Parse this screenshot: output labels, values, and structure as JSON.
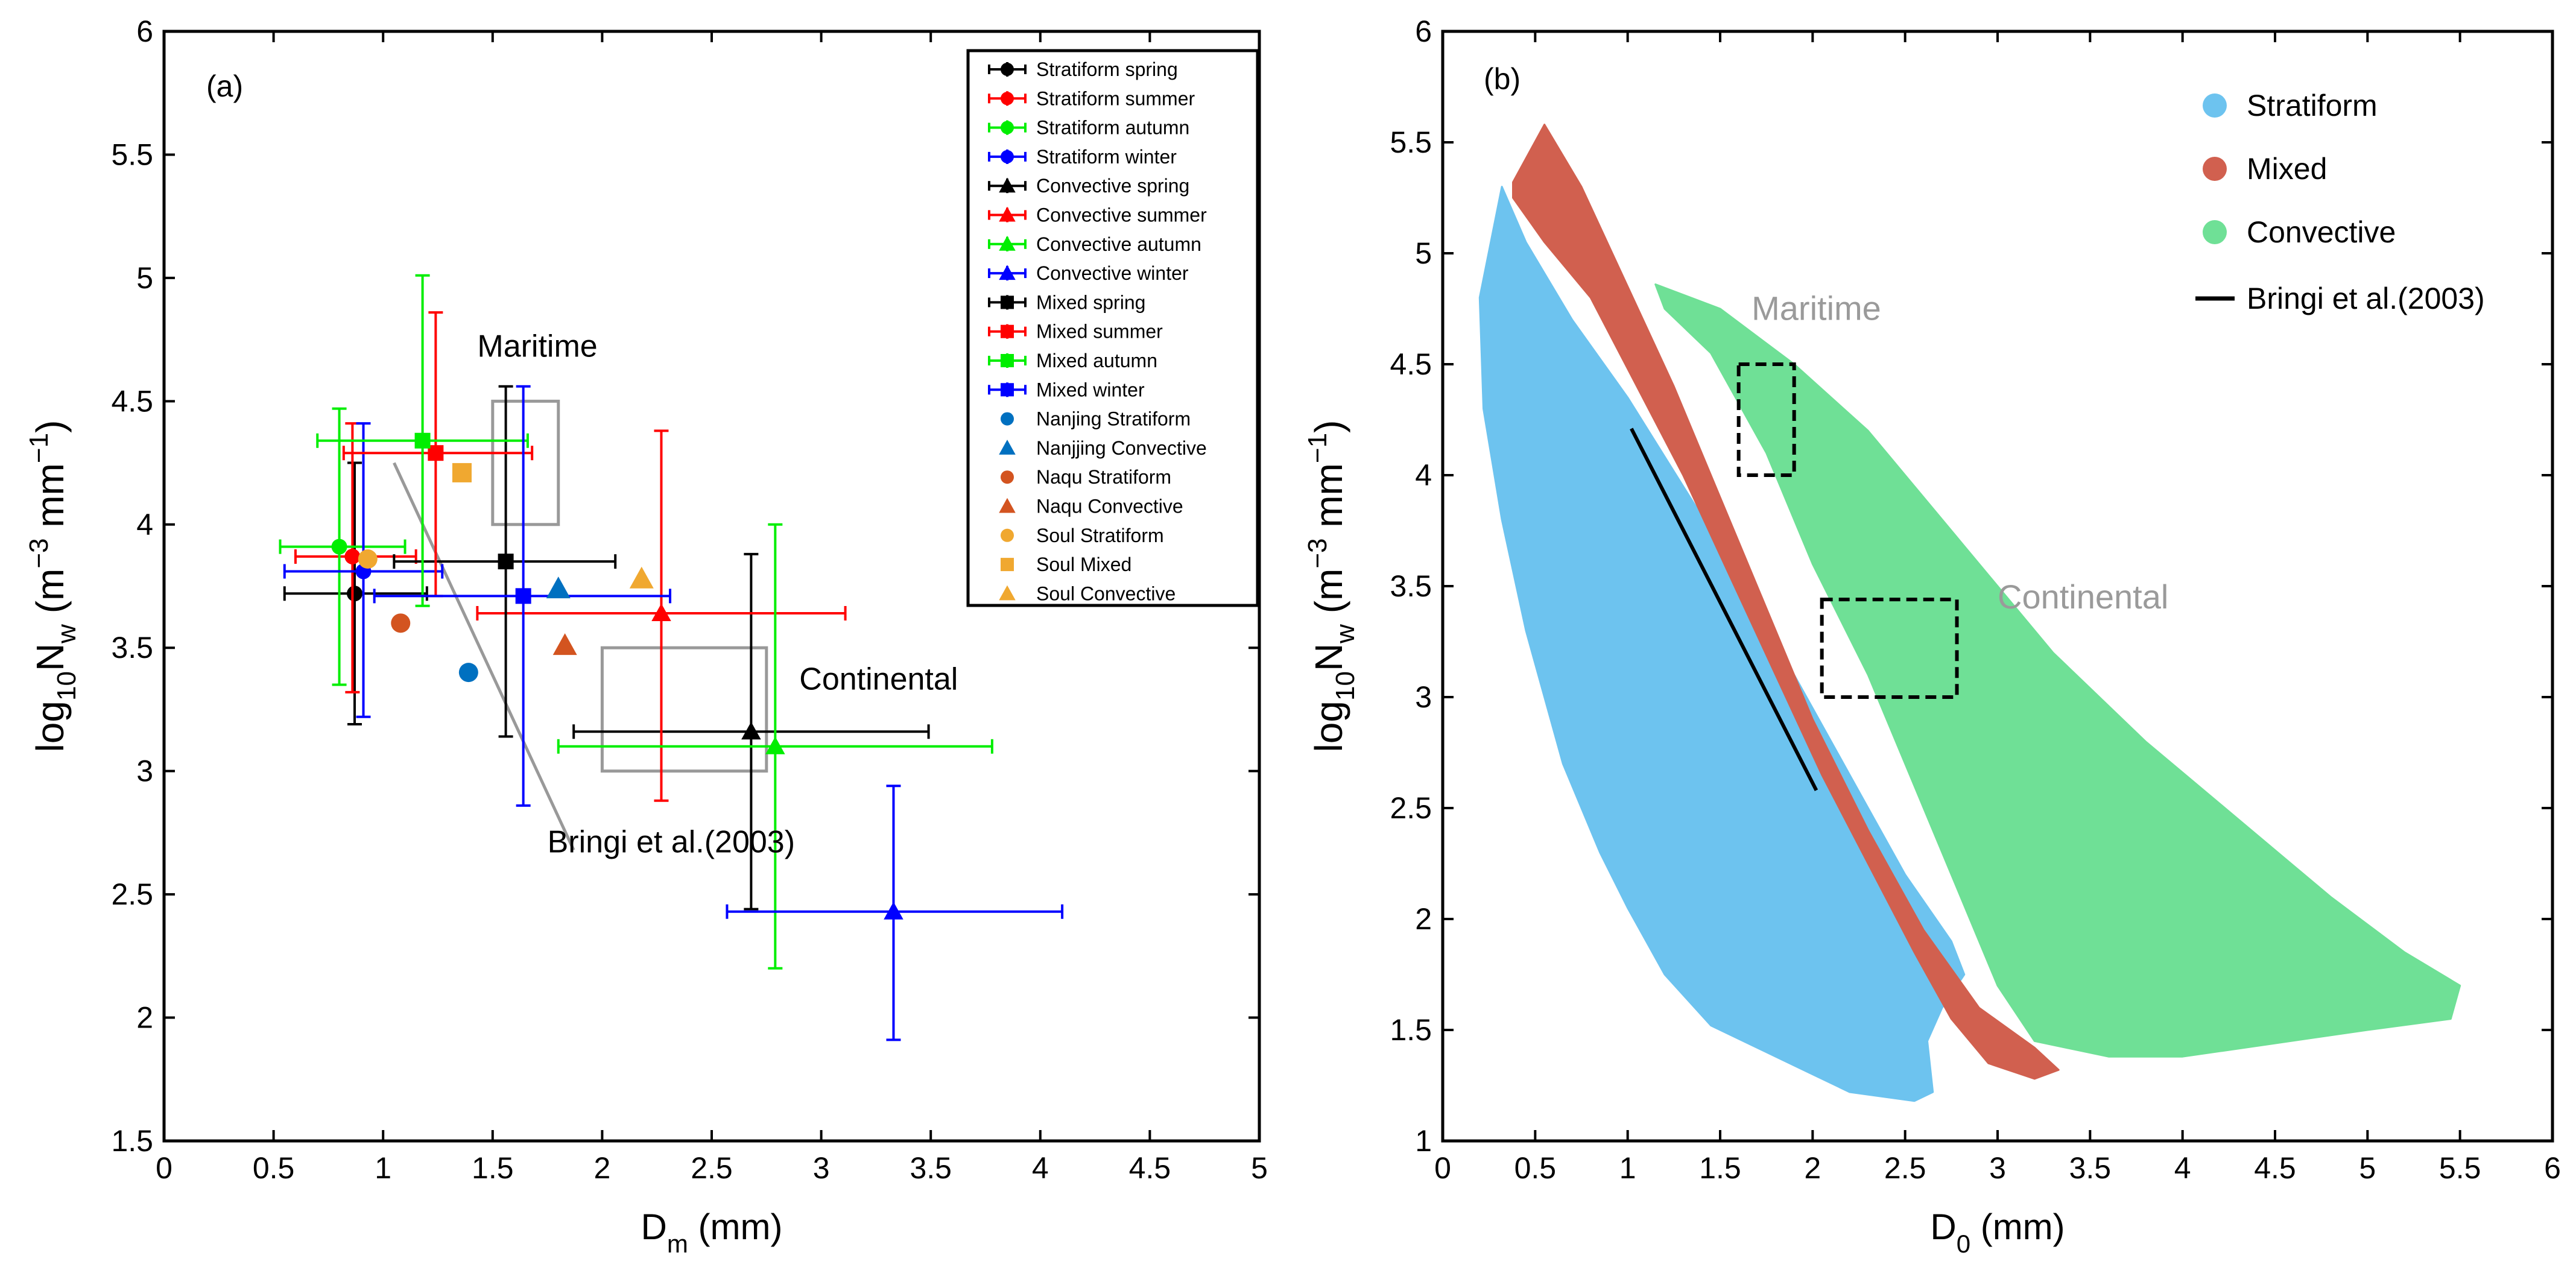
{
  "chart_data": [
    {
      "type": "scatter",
      "panel_label": "(a)",
      "xlabel": "D",
      "xlabel_sub": "m",
      "xlabel_unit": " (mm)",
      "ylabel_parts": [
        "log",
        "10",
        "N",
        "w",
        " (m",
        "−3",
        " mm",
        "−1",
        ")"
      ],
      "xlim": [
        0,
        5
      ],
      "ylim": [
        1.5,
        6
      ],
      "xticks": [
        0,
        0.5,
        1,
        1.5,
        2,
        2.5,
        3,
        3.5,
        4,
        4.5,
        5
      ],
      "xtick_labels": [
        "0",
        "0.5",
        "1",
        "1.5",
        "2",
        "2.5",
        "3",
        "3.5",
        "4",
        "4.5",
        "5"
      ],
      "yticks": [
        1.5,
        2,
        2.5,
        3,
        3.5,
        4,
        4.5,
        5,
        5.5,
        6
      ],
      "ytick_labels": [
        "1.5",
        "2",
        "2.5",
        "3",
        "3.5",
        "4",
        "4.5",
        "5",
        "5.5",
        "6"
      ],
      "grid": false,
      "legend_position": "top-right",
      "series": [
        {
          "name": "Stratiform spring",
          "color": "#000000",
          "marker": "circle",
          "x": 0.87,
          "y": 3.72,
          "xerr": [
            0.55,
            1.2
          ],
          "yerr": [
            3.19,
            4.25
          ]
        },
        {
          "name": "Stratiform summer",
          "color": "#ff0000",
          "marker": "circle",
          "x": 0.86,
          "y": 3.87,
          "xerr": [
            0.6,
            1.15
          ],
          "yerr": [
            3.32,
            4.41
          ]
        },
        {
          "name": "Stratiform autumn",
          "color": "#00ee00",
          "marker": "circle",
          "x": 0.8,
          "y": 3.91,
          "xerr": [
            0.53,
            1.1
          ],
          "yerr": [
            3.35,
            4.47
          ]
        },
        {
          "name": "Stratiform winter",
          "color": "#0000ff",
          "marker": "circle",
          "x": 0.91,
          "y": 3.81,
          "xerr": [
            0.55,
            1.27
          ],
          "yerr": [
            3.22,
            4.41
          ]
        },
        {
          "name": "Convective spring",
          "color": "#000000",
          "marker": "triangle",
          "x": 2.68,
          "y": 3.16,
          "xerr": [
            1.87,
            3.49
          ],
          "yerr": [
            2.44,
            3.88
          ]
        },
        {
          "name": "Convective summer",
          "color": "#ff0000",
          "marker": "triangle",
          "x": 2.27,
          "y": 3.64,
          "xerr": [
            1.43,
            3.11
          ],
          "yerr": [
            2.88,
            4.38
          ]
        },
        {
          "name": "Convective autumn",
          "color": "#00ee00",
          "marker": "triangle",
          "x": 2.79,
          "y": 3.1,
          "xerr": [
            1.8,
            3.78
          ],
          "yerr": [
            2.2,
            4.0
          ]
        },
        {
          "name": "Convective winter",
          "color": "#0000ff",
          "marker": "triangle",
          "x": 3.33,
          "y": 2.43,
          "xerr": [
            2.57,
            4.1
          ],
          "yerr": [
            1.91,
            2.94
          ]
        },
        {
          "name": "Mixed spring",
          "color": "#000000",
          "marker": "square",
          "x": 1.56,
          "y": 3.85,
          "xerr": [
            1.05,
            2.06
          ],
          "yerr": [
            3.14,
            4.56
          ]
        },
        {
          "name": "Mixed summer",
          "color": "#ff0000",
          "marker": "square",
          "x": 1.24,
          "y": 4.29,
          "xerr": [
            0.82,
            1.68
          ],
          "yerr": [
            3.71,
            4.86
          ]
        },
        {
          "name": "Mixed autumn",
          "color": "#00ee00",
          "marker": "square",
          "x": 1.18,
          "y": 4.34,
          "xerr": [
            0.7,
            1.66
          ],
          "yerr": [
            3.67,
            5.01
          ]
        },
        {
          "name": "Mixed winter",
          "color": "#0000ff",
          "marker": "square",
          "x": 1.64,
          "y": 3.71,
          "xerr": [
            0.96,
            2.31
          ],
          "yerr": [
            2.86,
            4.56
          ]
        },
        {
          "name": "Nanjing Stratiform",
          "color": "#0070c0",
          "marker": "dot",
          "x": 1.39,
          "y": 3.4
        },
        {
          "name": "Nanjjing Convective",
          "color": "#0070c0",
          "marker": "tri",
          "x": 1.8,
          "y": 3.74
        },
        {
          "name": "Naqu Stratiform",
          "color": "#d35420",
          "marker": "dot",
          "x": 1.08,
          "y": 3.6
        },
        {
          "name": "Naqu Convective",
          "color": "#d35420",
          "marker": "tri",
          "x": 1.83,
          "y": 3.51
        },
        {
          "name": "Soul Stratiform",
          "color": "#f0a830",
          "marker": "dot",
          "x": 0.93,
          "y": 3.86
        },
        {
          "name": "Soul Mixed",
          "color": "#f0a830",
          "marker": "sq",
          "x": 1.36,
          "y": 4.21
        },
        {
          "name": "Soul Convective",
          "color": "#f0a830",
          "marker": "tri",
          "x": 2.18,
          "y": 3.78
        }
      ],
      "boxes": [
        {
          "name": "Maritime",
          "x": [
            1.5,
            1.8
          ],
          "y": [
            4.0,
            4.5
          ],
          "color": "#999999"
        },
        {
          "name": "Continental",
          "x": [
            2.0,
            2.75
          ],
          "y": [
            3.0,
            3.5
          ],
          "color": "#999999"
        }
      ],
      "line": {
        "name": "Bringi et al.(2003)",
        "x": [
          1.05,
          1.87
        ],
        "y": [
          4.25,
          2.68
        ],
        "color": "#999999"
      },
      "annotations": [
        {
          "text": "Maritime",
          "x": 1.43,
          "y": 4.68
        },
        {
          "text": "Continental",
          "x": 2.9,
          "y": 3.33
        },
        {
          "text": "Bringi et al.(2003)",
          "x": 1.75,
          "y": 2.67
        }
      ]
    },
    {
      "type": "area",
      "panel_label": "(b)",
      "xlabel": "D",
      "xlabel_sub": "0",
      "xlabel_unit": " (mm)",
      "ylabel_parts": [
        "log",
        "10",
        "N",
        "w",
        " (m",
        "−3",
        " mm",
        "−1",
        ")"
      ],
      "xlim": [
        0,
        6
      ],
      "ylim": [
        1,
        6
      ],
      "xticks": [
        0,
        0.5,
        1,
        1.5,
        2,
        2.5,
        3,
        3.5,
        4,
        4.5,
        5,
        5.5,
        6
      ],
      "xtick_labels": [
        "0",
        "0.5",
        "1",
        "1.5",
        "2",
        "2.5",
        "3",
        "3.5",
        "4",
        "4.5",
        "5",
        "5.5",
        "6"
      ],
      "yticks": [
        1,
        1.5,
        2,
        2.5,
        3,
        3.5,
        4,
        4.5,
        5,
        5.5,
        6
      ],
      "ytick_labels": [
        "1",
        "1.5",
        "2",
        "2.5",
        "3",
        "3.5",
        "4",
        "4.5",
        "5",
        "5.5",
        "6"
      ],
      "grid": false,
      "legend_position": "top-right",
      "regions": [
        {
          "name": "Convective",
          "color": "#6fe096",
          "outline": [
            [
              1.15,
              4.86
            ],
            [
              1.5,
              4.75
            ],
            [
              1.9,
              4.5
            ],
            [
              2.3,
              4.2
            ],
            [
              2.8,
              3.7
            ],
            [
              3.3,
              3.2
            ],
            [
              3.8,
              2.8
            ],
            [
              4.3,
              2.45
            ],
            [
              4.8,
              2.1
            ],
            [
              5.2,
              1.85
            ],
            [
              5.5,
              1.7
            ],
            [
              5.45,
              1.55
            ],
            [
              5.0,
              1.5
            ],
            [
              4.5,
              1.44
            ],
            [
              4.0,
              1.38
            ],
            [
              3.6,
              1.38
            ],
            [
              3.2,
              1.45
            ],
            [
              3.0,
              1.7
            ],
            [
              2.8,
              2.1
            ],
            [
              2.55,
              2.6
            ],
            [
              2.3,
              3.1
            ],
            [
              2.0,
              3.6
            ],
            [
              1.75,
              4.1
            ],
            [
              1.45,
              4.55
            ],
            [
              1.2,
              4.75
            ]
          ]
        },
        {
          "name": "Stratiform",
          "color": "#6dc3ef",
          "outline": [
            [
              0.32,
              5.3
            ],
            [
              0.45,
              5.05
            ],
            [
              0.7,
              4.7
            ],
            [
              1.0,
              4.35
            ],
            [
              1.3,
              3.95
            ],
            [
              1.6,
              3.55
            ],
            [
              1.9,
              3.1
            ],
            [
              2.2,
              2.65
            ],
            [
              2.5,
              2.2
            ],
            [
              2.75,
              1.9
            ],
            [
              2.82,
              1.75
            ],
            [
              2.7,
              1.6
            ],
            [
              2.62,
              1.45
            ],
            [
              2.65,
              1.22
            ],
            [
              2.55,
              1.18
            ],
            [
              2.2,
              1.22
            ],
            [
              1.8,
              1.38
            ],
            [
              1.45,
              1.52
            ],
            [
              1.2,
              1.75
            ],
            [
              1.0,
              2.05
            ],
            [
              0.85,
              2.3
            ],
            [
              0.65,
              2.7
            ],
            [
              0.45,
              3.3
            ],
            [
              0.32,
              3.8
            ],
            [
              0.22,
              4.3
            ],
            [
              0.2,
              4.8
            ]
          ]
        },
        {
          "name": "Mixed",
          "color": "#d1604f",
          "outline": [
            [
              0.38,
              5.32
            ],
            [
              0.55,
              5.58
            ],
            [
              0.75,
              5.3
            ],
            [
              1.0,
              4.85
            ],
            [
              1.25,
              4.4
            ],
            [
              1.5,
              3.9
            ],
            [
              1.75,
              3.4
            ],
            [
              2.0,
              2.9
            ],
            [
              2.3,
              2.4
            ],
            [
              2.6,
              1.95
            ],
            [
              2.9,
              1.6
            ],
            [
              3.2,
              1.42
            ],
            [
              3.33,
              1.32
            ],
            [
              3.2,
              1.28
            ],
            [
              2.95,
              1.35
            ],
            [
              2.75,
              1.55
            ],
            [
              2.55,
              1.85
            ],
            [
              2.3,
              2.25
            ],
            [
              2.05,
              2.65
            ],
            [
              1.8,
              3.1
            ],
            [
              1.55,
              3.55
            ],
            [
              1.3,
              4.0
            ],
            [
              1.05,
              4.4
            ],
            [
              0.8,
              4.8
            ],
            [
              0.55,
              5.05
            ],
            [
              0.38,
              5.25
            ]
          ]
        }
      ],
      "boxes": [
        {
          "name": "Maritime",
          "x": [
            1.6,
            1.9
          ],
          "y": [
            4.0,
            4.5
          ],
          "color": "#000000"
        },
        {
          "name": "Continental",
          "x": [
            2.05,
            2.78
          ],
          "y": [
            3.0,
            3.44
          ],
          "color": "#000000"
        }
      ],
      "line": {
        "name": "Bringi et al.(2003)",
        "x": [
          1.02,
          2.02
        ],
        "y": [
          4.21,
          2.58
        ],
        "color": "#000000"
      },
      "annotations": [
        {
          "text": "Maritime",
          "x": 1.67,
          "y": 4.7
        },
        {
          "text": "Continental",
          "x": 3.0,
          "y": 3.4
        }
      ],
      "legend": [
        "Stratiform",
        "Mixed",
        "Convective",
        "Bringi et al.(2003)"
      ]
    }
  ]
}
